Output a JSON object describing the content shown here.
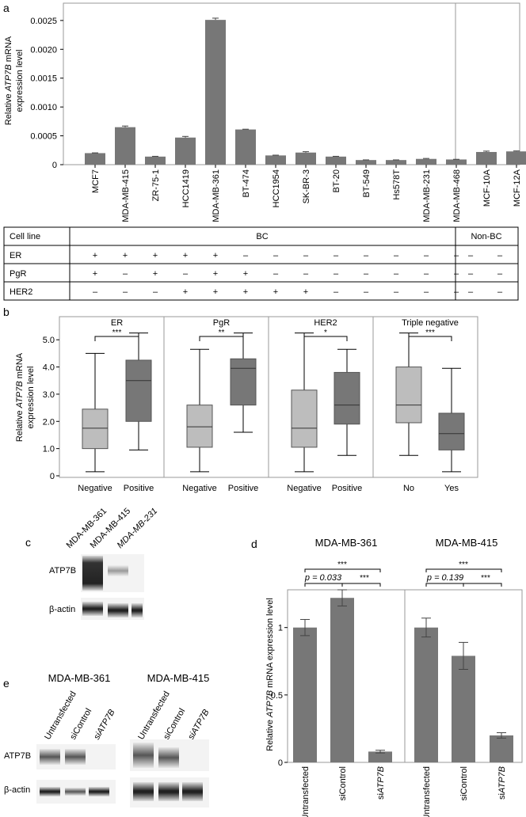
{
  "panel_labels": {
    "a": "a",
    "b": "b",
    "c": "c",
    "d": "d",
    "e": "e"
  },
  "colors": {
    "bar": "#777777",
    "box_light": "#bdbdbd",
    "box_dark": "#777777",
    "grid": "#999999"
  },
  "panel_a": {
    "ylabel_prefix": "Relative ",
    "ylabel_gene": "ATP7B",
    "ylabel_suffix": " mRNA",
    "ylabel_line2": "expression level",
    "yticks": [
      "0",
      "0.0005",
      "0.0010",
      "0.0015",
      "0.0020",
      "0.0025"
    ],
    "table": {
      "header_label": "Cell line",
      "bc_label": "BC",
      "nonbc_label": "Non-BC",
      "rows": [
        {
          "name": "ER",
          "values": [
            "+",
            "+",
            "+",
            "+",
            "+",
            "–",
            "–",
            "–",
            "–",
            "–",
            "–",
            "–",
            "–",
            "–",
            "–"
          ]
        },
        {
          "name": "PgR",
          "values": [
            "+",
            "–",
            "+",
            "–",
            "+",
            "+",
            "–",
            "–",
            "–",
            "–",
            "–",
            "–",
            "–",
            "–",
            "–"
          ]
        },
        {
          "name": "HER2",
          "values": [
            "–",
            "–",
            "–",
            "+",
            "+",
            "+",
            "+",
            "+",
            "–",
            "–",
            "–",
            "–",
            "–",
            "–",
            "–"
          ]
        }
      ]
    }
  },
  "panel_b": {
    "ylabel_prefix": "Relative ",
    "ylabel_gene": "ATP7B",
    "ylabel_suffix": " mRNA",
    "ylabel_line2": "expression level",
    "yticks": [
      "0",
      "1.0",
      "2.0",
      "3.0",
      "4.0",
      "5.0"
    ],
    "groups": [
      {
        "title": "ER",
        "sig": "***",
        "left": "Negative",
        "right": "Positive"
      },
      {
        "title": "PgR",
        "sig": "**",
        "left": "Negative",
        "right": "Positive"
      },
      {
        "title": "HER2",
        "sig": "*",
        "left": "Negative",
        "right": "Positive"
      },
      {
        "title": "Triple negative",
        "sig": "***",
        "left": "No",
        "right": "Yes"
      }
    ]
  },
  "panel_c": {
    "lanes": [
      "MDA-MB-361",
      "MDA-MB-415",
      "MDA-MB-231"
    ],
    "rows": [
      "ATP7B",
      "β-actin"
    ]
  },
  "panel_d": {
    "titles": [
      "MDA-MB-361",
      "MDA-MB-415"
    ],
    "ylabel_prefix": "Relative ",
    "ylabel_gene": "ATP7B",
    "ylabel_suffix": " mRNA expression level",
    "yticks": [
      "0",
      "0.5",
      "1"
    ],
    "conditions": [
      "Untransfected",
      "siControl",
      "siATP7B"
    ],
    "sig_top": [
      "***",
      "***"
    ],
    "p_labels": [
      "p = 0.033",
      "p = 0.139"
    ],
    "sig_small": [
      "***",
      "***"
    ]
  },
  "panel_e": {
    "titles": [
      "MDA-MB-361",
      "MDA-MB-415"
    ],
    "lanes": [
      "Untransfected",
      "siControl",
      "siATP7B"
    ],
    "rows": [
      "ATP7B",
      "β-actin"
    ]
  },
  "chart_data": [
    {
      "type": "bar",
      "panel": "a",
      "categories": [
        "MCF7",
        "MDA-MB-415",
        "ZR-75-1",
        "HCC1419",
        "MDA-MB-361",
        "BT-474",
        "HCC1954",
        "SK-BR-3",
        "BT-20",
        "BT-549",
        "Hs578T",
        "MDA-MB-231",
        "MDA-MB-468",
        "MCF-10A",
        "MCF-12A"
      ],
      "values": [
        0.0002,
        0.00065,
        0.00014,
        0.00047,
        0.00251,
        0.00061,
        0.00016,
        0.00021,
        0.00014,
        8e-05,
        8e-05,
        0.0001,
        9e-05,
        0.00022,
        0.00023
      ],
      "errors": [
        5e-06,
        2e-05,
        5e-06,
        2e-05,
        3e-05,
        5e-06,
        5e-06,
        1.5e-05,
        5e-06,
        3e-06,
        3e-06,
        8e-06,
        3e-06,
        1.5e-05,
        8e-06
      ],
      "ylim": [
        0,
        0.0028
      ],
      "ylabel": "Relative ATP7B mRNA expression level"
    },
    {
      "type": "box",
      "panel": "b",
      "ylim": [
        0,
        5.5
      ],
      "ylabel": "Relative ATP7B mRNA expression level",
      "boxes": [
        {
          "group": "ER",
          "label": "Negative",
          "min": 0.15,
          "q1": 1.0,
          "median": 1.75,
          "q3": 2.45,
          "max": 4.5
        },
        {
          "group": "ER",
          "label": "Positive",
          "min": 0.95,
          "q1": 2.0,
          "median": 3.5,
          "q3": 4.25,
          "max": 5.25
        },
        {
          "group": "PgR",
          "label": "Negative",
          "min": 0.15,
          "q1": 1.05,
          "median": 1.8,
          "q3": 2.6,
          "max": 4.65
        },
        {
          "group": "PgR",
          "label": "Positive",
          "min": 1.6,
          "q1": 2.6,
          "median": 3.95,
          "q3": 4.3,
          "max": 5.25
        },
        {
          "group": "HER2",
          "label": "Negative",
          "min": 0.15,
          "q1": 1.05,
          "median": 1.75,
          "q3": 3.15,
          "max": 5.25
        },
        {
          "group": "HER2",
          "label": "Positive",
          "min": 0.75,
          "q1": 1.9,
          "median": 2.6,
          "q3": 3.8,
          "max": 4.65
        },
        {
          "group": "Triple negative",
          "label": "No",
          "min": 0.75,
          "q1": 1.95,
          "median": 2.6,
          "q3": 4.0,
          "max": 5.25
        },
        {
          "group": "Triple negative",
          "label": "Yes",
          "min": 0.15,
          "q1": 0.95,
          "median": 1.55,
          "q3": 2.3,
          "max": 3.95
        }
      ]
    },
    {
      "type": "bar",
      "panel": "d",
      "categories": [
        "Untransfected",
        "siControl",
        "siATP7B"
      ],
      "series": [
        {
          "name": "MDA-MB-361",
          "values": [
            1.0,
            1.22,
            0.08
          ],
          "errors": [
            0.06,
            0.06,
            0.01
          ]
        },
        {
          "name": "MDA-MB-415",
          "values": [
            1.0,
            0.79,
            0.2
          ],
          "errors": [
            0.07,
            0.1,
            0.02
          ]
        }
      ],
      "ylim": [
        0,
        1.28
      ],
      "ylabel": "Relative ATP7B mRNA expression level"
    }
  ]
}
